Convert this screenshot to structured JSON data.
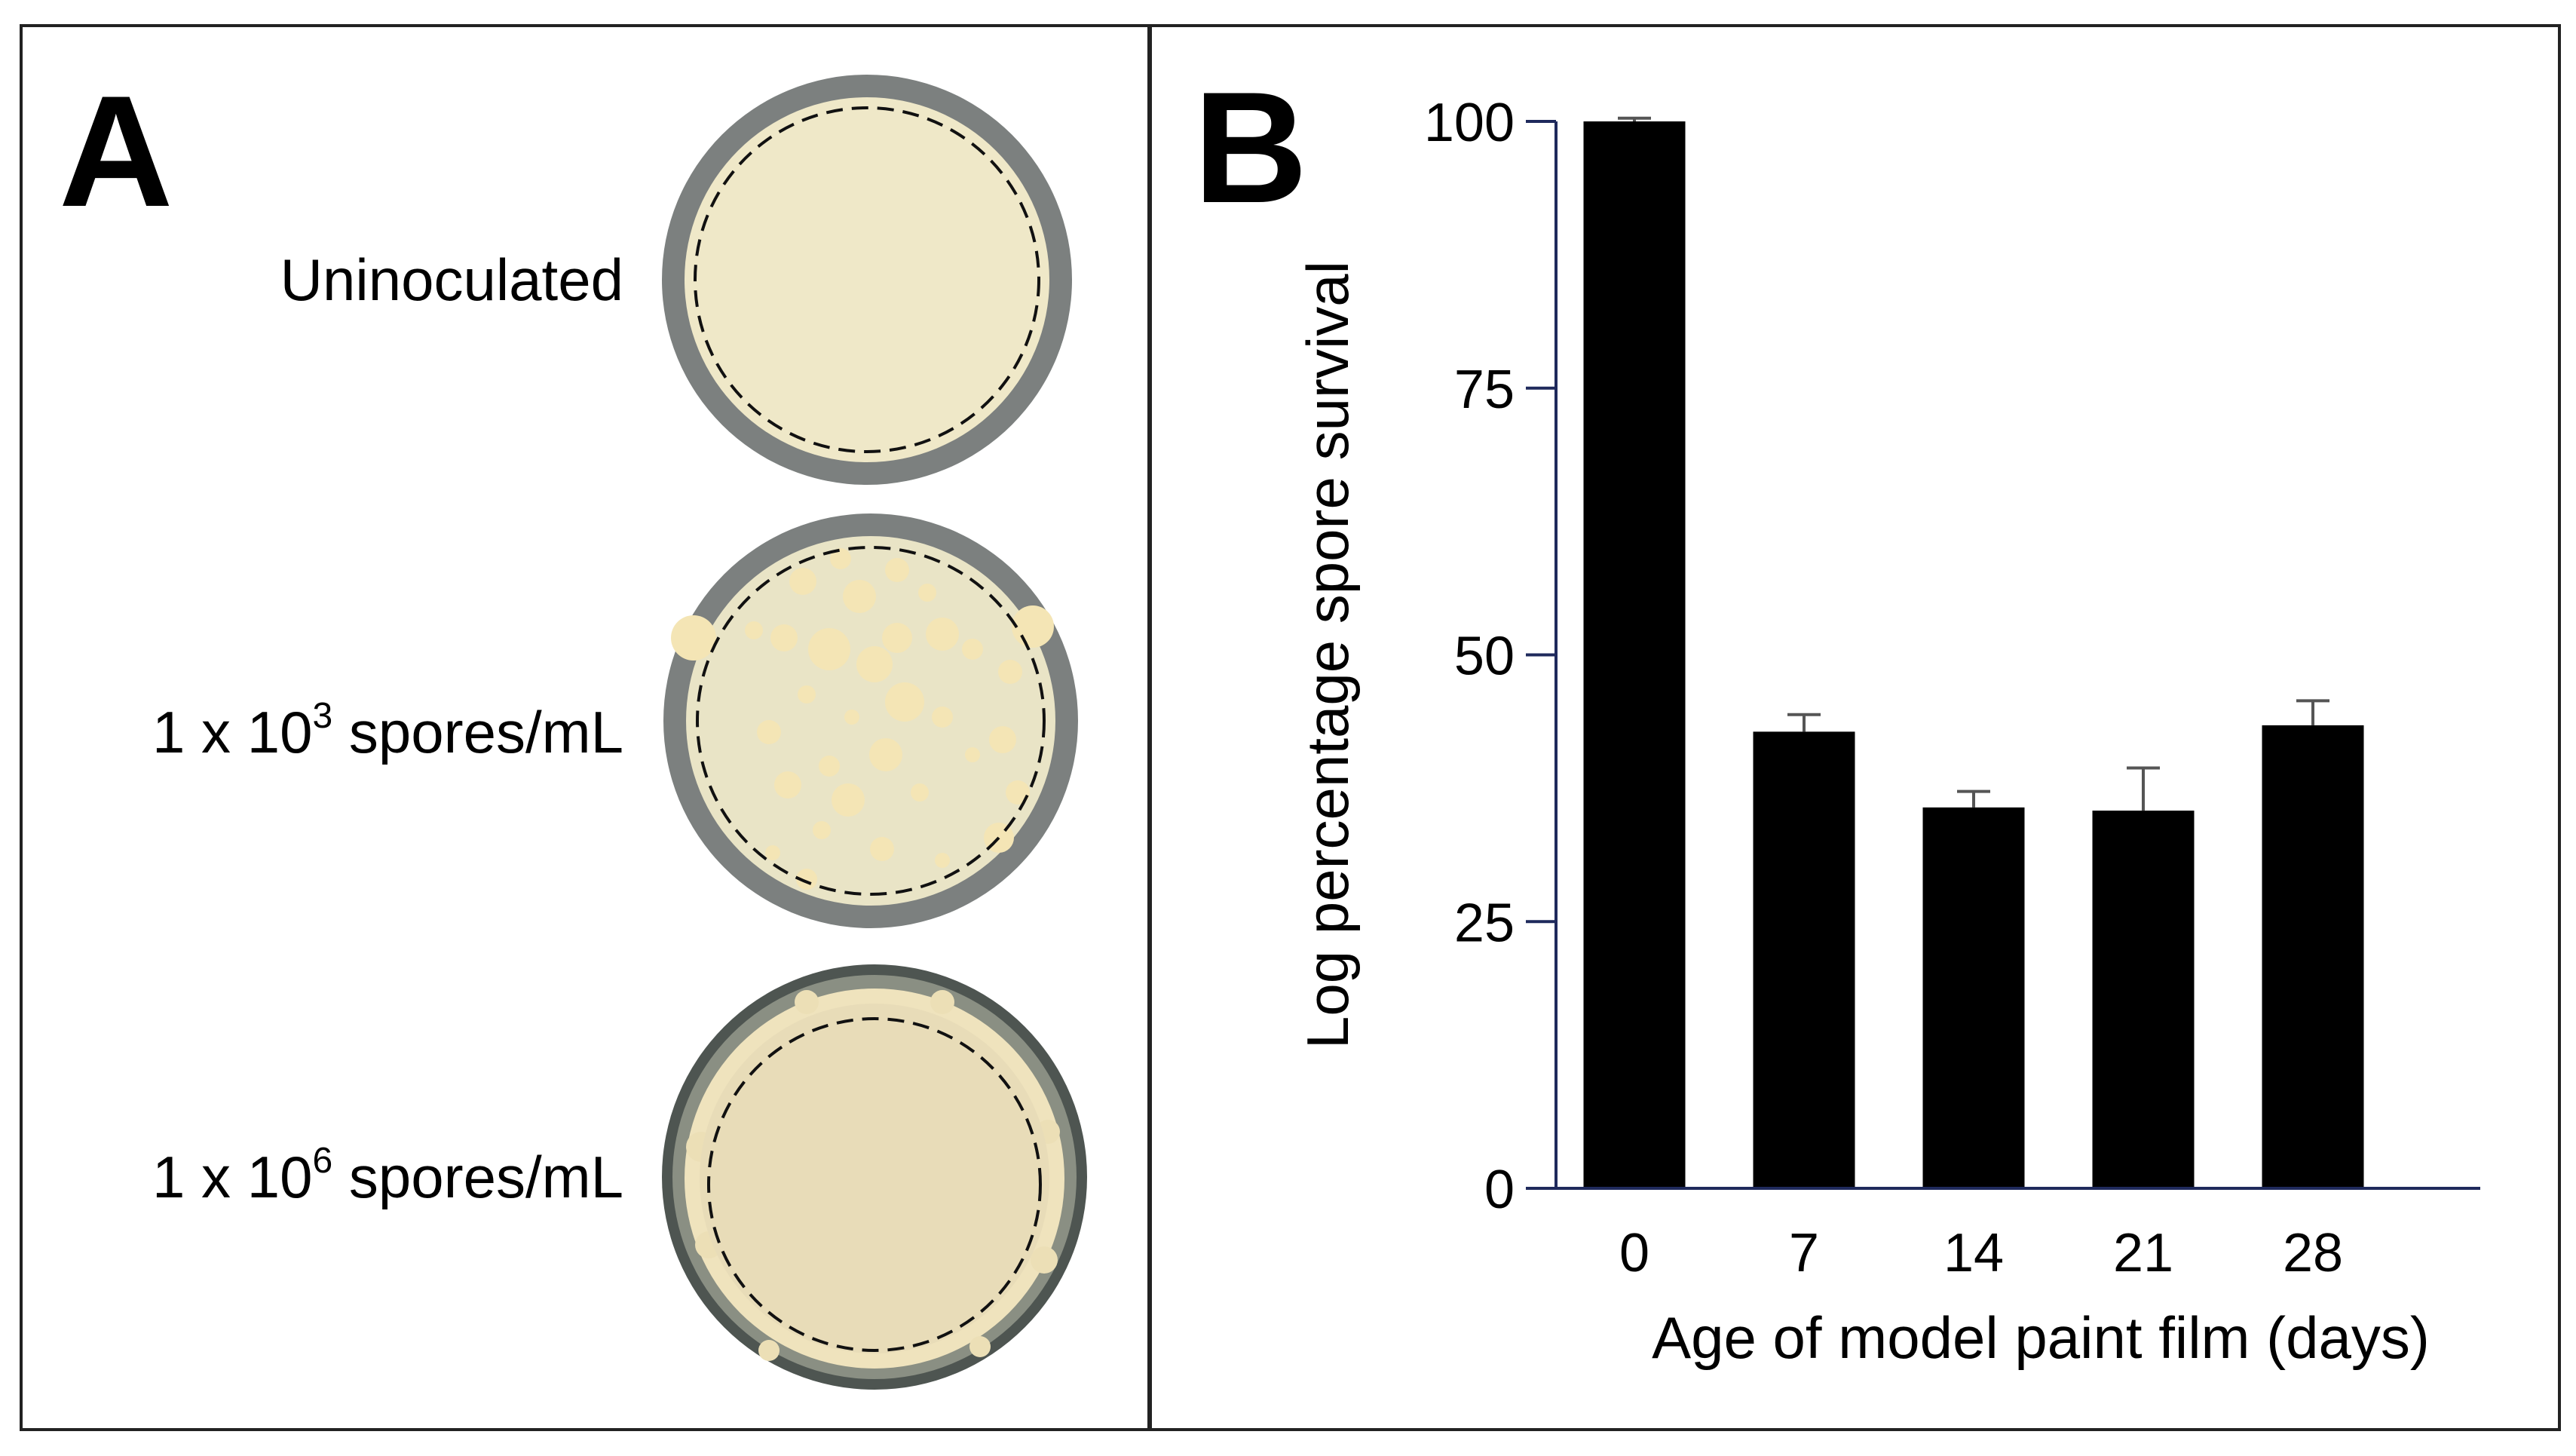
{
  "panel_a": {
    "letter": "A",
    "rows": [
      {
        "label_main": "Uninoculated",
        "label_sup": "",
        "label_after": ""
      },
      {
        "label_main": "1 x 10",
        "label_sup": "3",
        "label_after": " spores/mL"
      },
      {
        "label_main": "1 x 10",
        "label_sup": "6",
        "label_after": " spores/mL"
      }
    ],
    "colors": {
      "rim": "#7c807f",
      "agar": "#efe8c8",
      "colony": "#f4e5b5",
      "lawn": "#e8dcb8",
      "lawn_rim": "#4e5551"
    }
  },
  "panel_b": {
    "letter": "B"
  },
  "chart_data": {
    "type": "bar",
    "categories": [
      "0",
      "7",
      "14",
      "21",
      "28"
    ],
    "values": [
      100,
      42.8,
      35.7,
      35.4,
      43.4
    ],
    "error_upper": [
      0.3,
      1.6,
      1.5,
      4.0,
      2.3
    ],
    "yticks": [
      0,
      25,
      50,
      75,
      100
    ],
    "ylim": [
      0,
      100
    ],
    "xlabel": "Age of model paint film (days)",
    "ylabel": "Log percentage spore survival",
    "colors": {
      "bars": "#000000",
      "axis": "#1f2a5c"
    },
    "grid": false
  }
}
